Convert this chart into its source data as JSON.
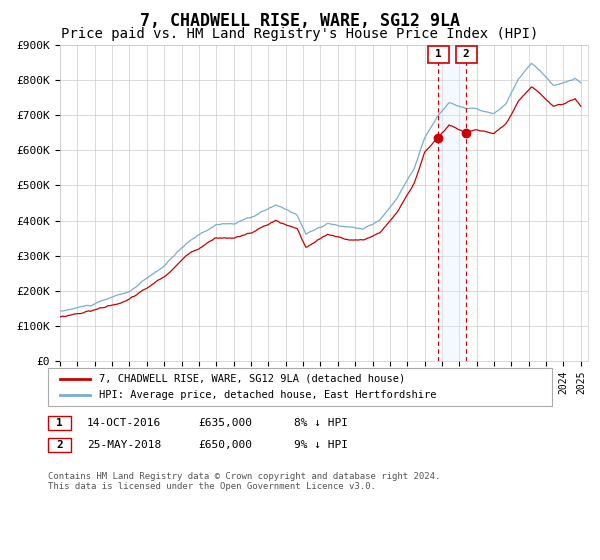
{
  "title": "7, CHADWELL RISE, WARE, SG12 9LA",
  "subtitle": "Price paid vs. HM Land Registry's House Price Index (HPI)",
  "title_fontsize": 12,
  "subtitle_fontsize": 10,
  "ylabel_values": [
    "£0",
    "£100K",
    "£200K",
    "£300K",
    "£400K",
    "£500K",
    "£600K",
    "£700K",
    "£800K",
    "£900K"
  ],
  "ylim": [
    0,
    900000
  ],
  "yticks": [
    0,
    100000,
    200000,
    300000,
    400000,
    500000,
    600000,
    700000,
    800000,
    900000
  ],
  "hpi_color": "#7aadd4",
  "price_color": "#cc0000",
  "marker_color": "#cc0000",
  "vline_color": "#cc0000",
  "vspan_color": "#ddeeff",
  "transaction1_date": "14-OCT-2016",
  "transaction1_price": 635000,
  "transaction1_label": "8% ↓ HPI",
  "transaction2_date": "25-MAY-2018",
  "transaction2_price": 650000,
  "transaction2_label": "9% ↓ HPI",
  "legend_line1": "7, CHADWELL RISE, WARE, SG12 9LA (detached house)",
  "legend_line2": "HPI: Average price, detached house, East Hertfordshire",
  "footer": "Contains HM Land Registry data © Crown copyright and database right 2024.\nThis data is licensed under the Open Government Licence v3.0.",
  "grid_color": "#cccccc",
  "background_color": "#ffffff",
  "box_edge_color": "#cc0000"
}
